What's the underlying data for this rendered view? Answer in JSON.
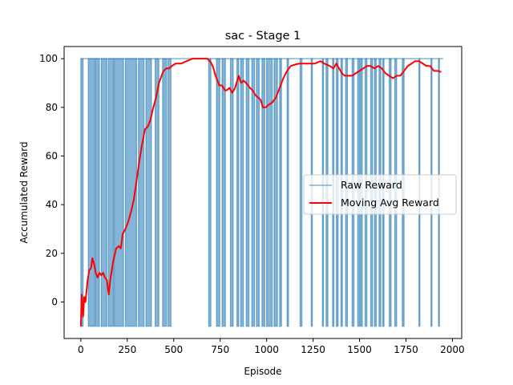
{
  "chart_data": {
    "type": "line",
    "title": "sac - Stage 1",
    "xlabel": "Episode",
    "ylabel": "Accumulated Reward",
    "xlim": [
      -90,
      2050
    ],
    "ylim": [
      -15,
      105
    ],
    "xticks": [
      0,
      250,
      500,
      750,
      1000,
      1250,
      1500,
      1750,
      2000
    ],
    "yticks": [
      0,
      20,
      40,
      60,
      80,
      100
    ],
    "grid": false,
    "legend_position": "center-right",
    "series": [
      {
        "name": "Raw Reward",
        "color": "#1f77b4",
        "alpha": 0.55,
        "style": "oscillating between -10 and 100",
        "low": -10,
        "high": 100,
        "x_range": [
          0,
          1950
        ],
        "low_episode_segments": [
          [
            0,
            12
          ],
          [
            40,
            75
          ],
          [
            80,
            100
          ],
          [
            110,
            140
          ],
          [
            148,
            175
          ],
          [
            180,
            230
          ],
          [
            240,
            300
          ],
          [
            310,
            340
          ],
          [
            350,
            380
          ],
          [
            400,
            420
          ],
          [
            440,
            460
          ],
          [
            468,
            485
          ],
          [
            688,
            700
          ],
          [
            730,
            748
          ],
          [
            760,
            778
          ],
          [
            805,
            820
          ],
          [
            840,
            850
          ],
          [
            860,
            875
          ],
          [
            890,
            905
          ],
          [
            920,
            935
          ],
          [
            945,
            960
          ],
          [
            975,
            990
          ],
          [
            1000,
            1030
          ],
          [
            1040,
            1058
          ],
          [
            1070,
            1080
          ],
          [
            1110,
            1118
          ],
          [
            1180,
            1190
          ],
          [
            1240,
            1246
          ],
          [
            1300,
            1306
          ],
          [
            1320,
            1330
          ],
          [
            1355,
            1362
          ],
          [
            1375,
            1385
          ],
          [
            1400,
            1408
          ],
          [
            1425,
            1435
          ],
          [
            1460,
            1470
          ],
          [
            1490,
            1500
          ],
          [
            1505,
            1515
          ],
          [
            1530,
            1540
          ],
          [
            1560,
            1570
          ],
          [
            1580,
            1590
          ],
          [
            1605,
            1615
          ],
          [
            1625,
            1632
          ],
          [
            1660,
            1670
          ],
          [
            1690,
            1700
          ],
          [
            1730,
            1740
          ],
          [
            1820,
            1825
          ],
          [
            1885,
            1890
          ],
          [
            1925,
            1930
          ]
        ]
      },
      {
        "name": "Moving Avg Reward",
        "color": "#ff0000",
        "points": [
          [
            0,
            -10
          ],
          [
            5,
            3
          ],
          [
            12,
            -6
          ],
          [
            18,
            2
          ],
          [
            25,
            0
          ],
          [
            35,
            8
          ],
          [
            45,
            13
          ],
          [
            55,
            14
          ],
          [
            62,
            18
          ],
          [
            70,
            16
          ],
          [
            80,
            12
          ],
          [
            90,
            10
          ],
          [
            100,
            12
          ],
          [
            110,
            11
          ],
          [
            120,
            12
          ],
          [
            130,
            10
          ],
          [
            140,
            9
          ],
          [
            150,
            3
          ],
          [
            160,
            10
          ],
          [
            175,
            17
          ],
          [
            190,
            22
          ],
          [
            205,
            23
          ],
          [
            215,
            22
          ],
          [
            225,
            28
          ],
          [
            240,
            30
          ],
          [
            255,
            33
          ],
          [
            270,
            37
          ],
          [
            285,
            42
          ],
          [
            300,
            50
          ],
          [
            315,
            58
          ],
          [
            330,
            65
          ],
          [
            345,
            71
          ],
          [
            360,
            72
          ],
          [
            375,
            75
          ],
          [
            390,
            80
          ],
          [
            405,
            84
          ],
          [
            420,
            90
          ],
          [
            430,
            92
          ],
          [
            445,
            95
          ],
          [
            460,
            96
          ],
          [
            475,
            96
          ],
          [
            490,
            97
          ],
          [
            510,
            98
          ],
          [
            540,
            98
          ],
          [
            570,
            99
          ],
          [
            600,
            100
          ],
          [
            640,
            100
          ],
          [
            660,
            100
          ],
          [
            680,
            100
          ],
          [
            695,
            99
          ],
          [
            710,
            97
          ],
          [
            725,
            93
          ],
          [
            745,
            89
          ],
          [
            760,
            89
          ],
          [
            775,
            87
          ],
          [
            785,
            87
          ],
          [
            800,
            88
          ],
          [
            815,
            86
          ],
          [
            830,
            88
          ],
          [
            850,
            93
          ],
          [
            862,
            90
          ],
          [
            875,
            91
          ],
          [
            890,
            90
          ],
          [
            910,
            88
          ],
          [
            925,
            87
          ],
          [
            940,
            85
          ],
          [
            955,
            84
          ],
          [
            968,
            83
          ],
          [
            980,
            80
          ],
          [
            995,
            80
          ],
          [
            1010,
            81
          ],
          [
            1030,
            82
          ],
          [
            1050,
            84
          ],
          [
            1070,
            88
          ],
          [
            1090,
            92
          ],
          [
            1110,
            95
          ],
          [
            1130,
            97
          ],
          [
            1150,
            97.5
          ],
          [
            1175,
            98
          ],
          [
            1200,
            98
          ],
          [
            1230,
            98
          ],
          [
            1260,
            98
          ],
          [
            1290,
            99
          ],
          [
            1310,
            98
          ],
          [
            1340,
            97
          ],
          [
            1360,
            96
          ],
          [
            1375,
            98
          ],
          [
            1390,
            96
          ],
          [
            1405,
            94
          ],
          [
            1420,
            93
          ],
          [
            1440,
            93
          ],
          [
            1460,
            93
          ],
          [
            1480,
            94
          ],
          [
            1500,
            95
          ],
          [
            1520,
            96
          ],
          [
            1540,
            97
          ],
          [
            1560,
            97
          ],
          [
            1580,
            96
          ],
          [
            1600,
            97
          ],
          [
            1620,
            96
          ],
          [
            1640,
            94
          ],
          [
            1660,
            93
          ],
          [
            1680,
            92
          ],
          [
            1700,
            93
          ],
          [
            1720,
            93
          ],
          [
            1740,
            95
          ],
          [
            1760,
            97
          ],
          [
            1780,
            98
          ],
          [
            1800,
            99
          ],
          [
            1820,
            99
          ],
          [
            1840,
            98
          ],
          [
            1860,
            97
          ],
          [
            1880,
            97
          ],
          [
            1900,
            95
          ],
          [
            1920,
            95
          ],
          [
            1940,
            94.5
          ]
        ]
      }
    ]
  }
}
